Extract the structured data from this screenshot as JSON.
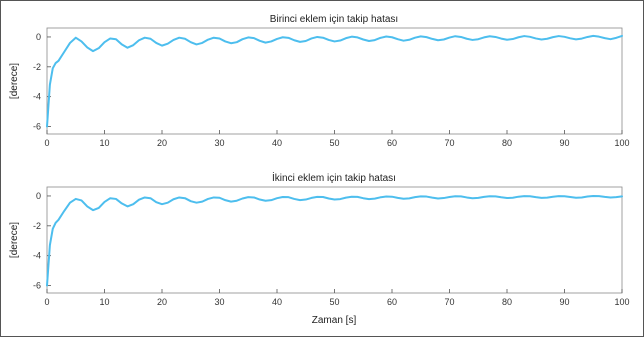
{
  "chart_data": [
    {
      "type": "line",
      "title": "Birinci eklem için takip hatası",
      "xlabel": "",
      "ylabel": "[derece]",
      "xlim": [
        0,
        100
      ],
      "ylim": [
        -6.5,
        0.6
      ],
      "x_ticks": [
        0,
        10,
        20,
        30,
        40,
        50,
        60,
        70,
        80,
        90,
        100
      ],
      "y_ticks": [
        -6,
        -4,
        -2,
        0
      ],
      "grid": false,
      "color": "#4dbeee",
      "series": [
        {
          "x": [
            0,
            0.5,
            1,
            1.5,
            2,
            3,
            4,
            5,
            6,
            7,
            8,
            9,
            10,
            11,
            12,
            13,
            14,
            15,
            16,
            17,
            18,
            19,
            20,
            21,
            22,
            23,
            24,
            25,
            26,
            27,
            28,
            29,
            30,
            31,
            32,
            33,
            34,
            35,
            36,
            37,
            38,
            39,
            40,
            41,
            42,
            43,
            44,
            45,
            46,
            47,
            48,
            49,
            50,
            51,
            52,
            53,
            54,
            55,
            56,
            57,
            58,
            59,
            60,
            61,
            62,
            63,
            64,
            65,
            66,
            67,
            68,
            69,
            70,
            71,
            72,
            73,
            74,
            75,
            76,
            77,
            78,
            79,
            80,
            81,
            82,
            83,
            84,
            85,
            86,
            87,
            88,
            89,
            90,
            91,
            92,
            93,
            94,
            95,
            96,
            97,
            98,
            99,
            100
          ],
          "y": [
            -6.0,
            -3.2,
            -2.1,
            -1.75,
            -1.6,
            -1.0,
            -0.4,
            -0.05,
            -0.3,
            -0.7,
            -0.95,
            -0.75,
            -0.35,
            -0.1,
            -0.15,
            -0.5,
            -0.72,
            -0.55,
            -0.22,
            -0.05,
            -0.12,
            -0.4,
            -0.58,
            -0.45,
            -0.2,
            -0.05,
            -0.12,
            -0.35,
            -0.5,
            -0.4,
            -0.18,
            -0.05,
            -0.1,
            -0.3,
            -0.42,
            -0.35,
            -0.15,
            -0.03,
            -0.08,
            -0.26,
            -0.38,
            -0.3,
            -0.13,
            -0.02,
            -0.06,
            -0.22,
            -0.33,
            -0.27,
            -0.1,
            0.0,
            -0.05,
            -0.2,
            -0.3,
            -0.24,
            -0.08,
            0.02,
            -0.03,
            -0.17,
            -0.27,
            -0.21,
            -0.06,
            0.03,
            -0.02,
            -0.15,
            -0.25,
            -0.19,
            -0.05,
            0.04,
            -0.01,
            -0.13,
            -0.22,
            -0.17,
            -0.04,
            0.05,
            0.0,
            -0.12,
            -0.2,
            -0.15,
            -0.03,
            0.05,
            0.0,
            -0.11,
            -0.19,
            -0.14,
            -0.02,
            0.06,
            0.01,
            -0.1,
            -0.17,
            -0.12,
            -0.01,
            0.06,
            0.01,
            -0.09,
            -0.16,
            -0.11,
            0.0,
            0.07,
            0.02,
            -0.08,
            -0.15,
            -0.06,
            0.07
          ]
        }
      ]
    },
    {
      "type": "line",
      "title": "İkinci eklem için takip hatası",
      "xlabel": "Zaman [s]",
      "ylabel": "[derece]",
      "xlim": [
        0,
        100
      ],
      "ylim": [
        -6.5,
        0.6
      ],
      "x_ticks": [
        0,
        10,
        20,
        30,
        40,
        50,
        60,
        70,
        80,
        90,
        100
      ],
      "y_ticks": [
        -6,
        -4,
        -2,
        0
      ],
      "grid": false,
      "color": "#4dbeee",
      "series": [
        {
          "x": [
            0,
            0.5,
            1,
            1.5,
            2,
            3,
            4,
            5,
            6,
            7,
            8,
            9,
            10,
            11,
            12,
            13,
            14,
            15,
            16,
            17,
            18,
            19,
            20,
            21,
            22,
            23,
            24,
            25,
            26,
            27,
            28,
            29,
            30,
            31,
            32,
            33,
            34,
            35,
            36,
            37,
            38,
            39,
            40,
            41,
            42,
            43,
            44,
            45,
            46,
            47,
            48,
            49,
            50,
            51,
            52,
            53,
            54,
            55,
            56,
            57,
            58,
            59,
            60,
            61,
            62,
            63,
            64,
            65,
            66,
            67,
            68,
            69,
            70,
            71,
            72,
            73,
            74,
            75,
            76,
            77,
            78,
            79,
            80,
            81,
            82,
            83,
            84,
            85,
            86,
            87,
            88,
            89,
            90,
            91,
            92,
            93,
            94,
            95,
            96,
            97,
            98,
            99,
            100
          ],
          "y": [
            -6.0,
            -3.3,
            -2.2,
            -1.8,
            -1.6,
            -1.0,
            -0.45,
            -0.2,
            -0.3,
            -0.7,
            -0.95,
            -0.8,
            -0.4,
            -0.15,
            -0.2,
            -0.5,
            -0.7,
            -0.55,
            -0.25,
            -0.1,
            -0.15,
            -0.42,
            -0.55,
            -0.45,
            -0.22,
            -0.1,
            -0.15,
            -0.35,
            -0.45,
            -0.38,
            -0.2,
            -0.1,
            -0.12,
            -0.28,
            -0.38,
            -0.32,
            -0.17,
            -0.08,
            -0.1,
            -0.24,
            -0.32,
            -0.28,
            -0.15,
            -0.07,
            -0.08,
            -0.2,
            -0.28,
            -0.24,
            -0.13,
            -0.06,
            -0.07,
            -0.17,
            -0.24,
            -0.21,
            -0.11,
            -0.05,
            -0.06,
            -0.15,
            -0.21,
            -0.18,
            -0.09,
            -0.04,
            -0.05,
            -0.13,
            -0.19,
            -0.16,
            -0.08,
            -0.03,
            -0.04,
            -0.11,
            -0.17,
            -0.14,
            -0.07,
            -0.02,
            -0.03,
            -0.1,
            -0.15,
            -0.13,
            -0.06,
            -0.02,
            -0.03,
            -0.09,
            -0.14,
            -0.12,
            -0.05,
            -0.01,
            -0.02,
            -0.08,
            -0.13,
            -0.11,
            -0.05,
            -0.01,
            -0.02,
            -0.07,
            -0.12,
            -0.1,
            -0.04,
            0.0,
            -0.01,
            -0.06,
            -0.1,
            -0.08,
            -0.03
          ]
        }
      ]
    }
  ]
}
